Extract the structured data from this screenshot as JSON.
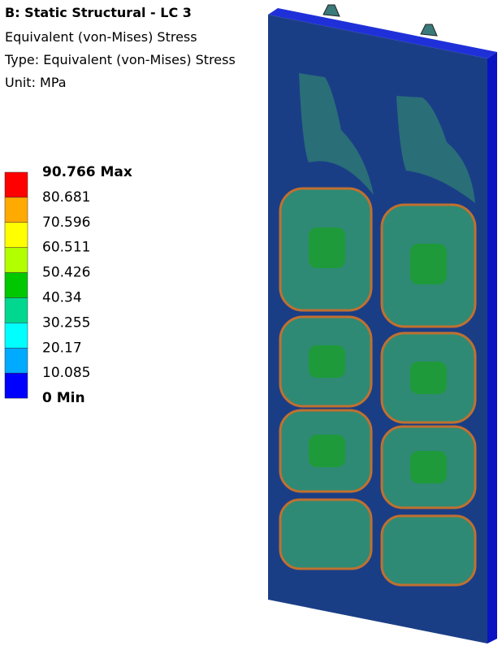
{
  "header": {
    "title": "B: Static Structural - LC 3",
    "result": "Equivalent (von-Mises) Stress",
    "type": "Type: Equivalent (von-Mises) Stress",
    "unit": "Unit: MPa"
  },
  "legend": {
    "labels": [
      "90.766 Max",
      "80.681",
      "70.596",
      "60.511",
      "50.426",
      "40.34",
      "30.255",
      "20.17",
      "10.085",
      "0 Min"
    ],
    "colors": [
      "#ff0000",
      "#ffaa00",
      "#ffff00",
      "#b2ff00",
      "#00c800",
      "#00d890",
      "#00ffff",
      "#00aaff",
      "#0000ff"
    ]
  }
}
